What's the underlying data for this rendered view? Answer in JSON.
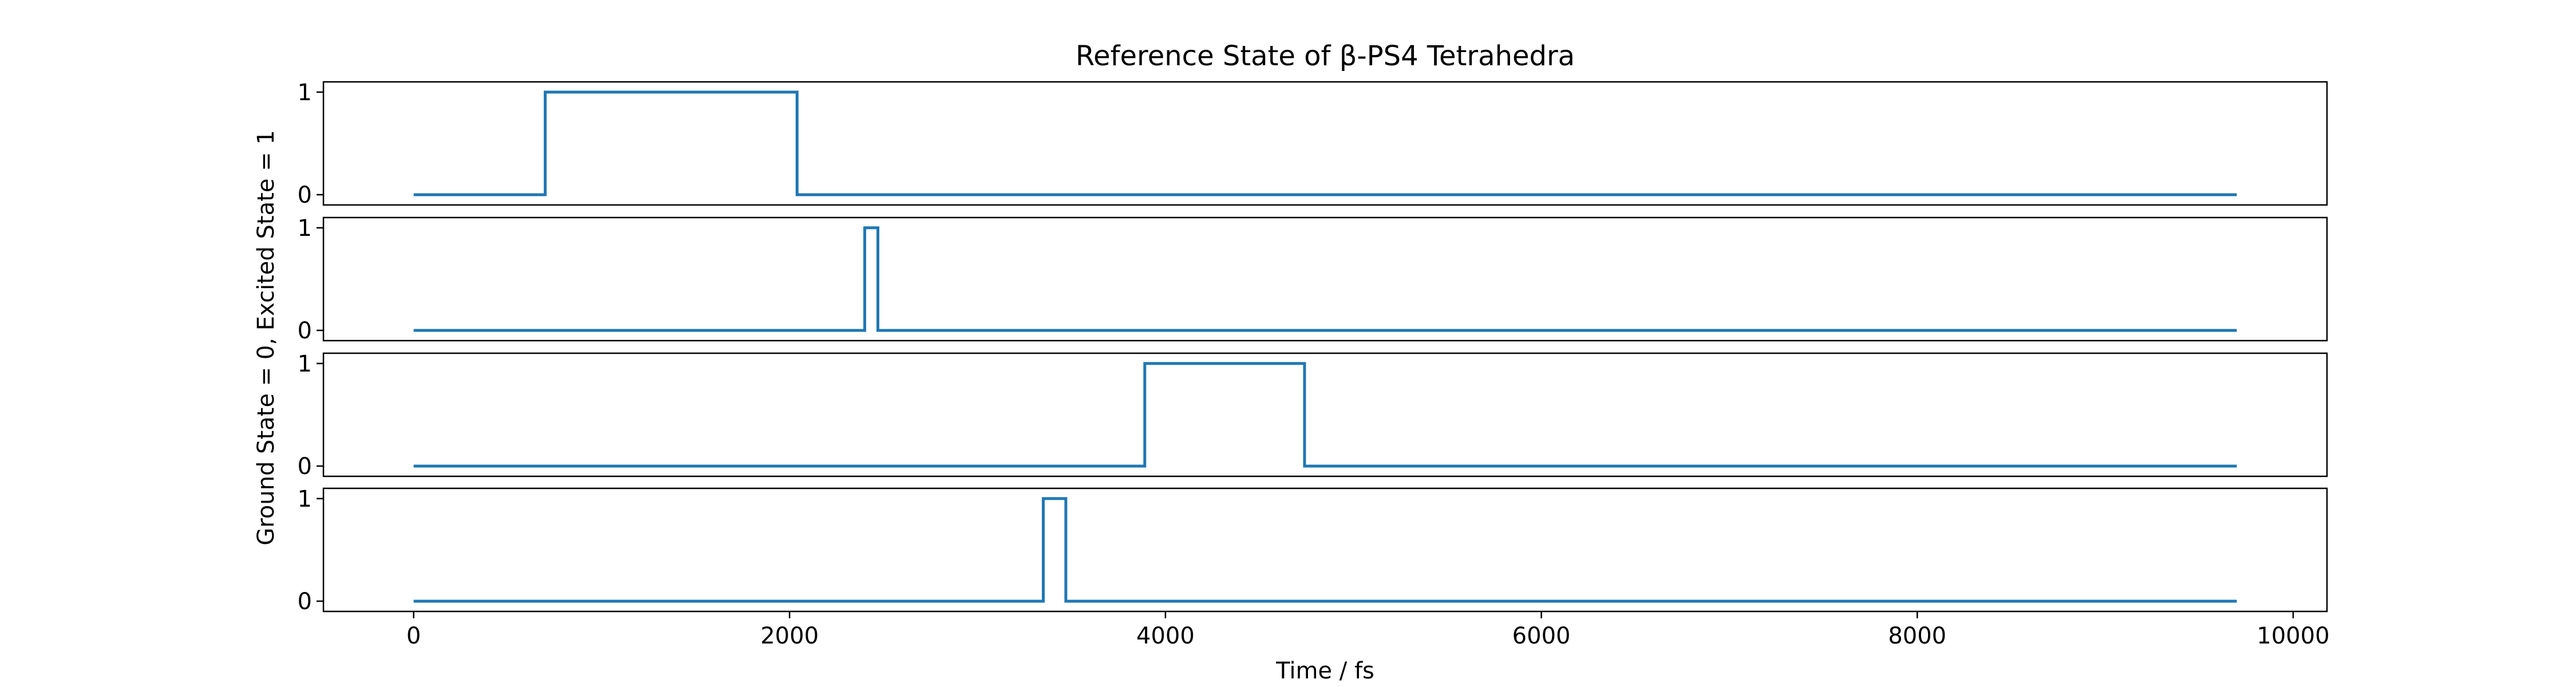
{
  "chart_data": {
    "type": "line",
    "title": "Reference State of β-PS4 Tetrahedra",
    "xlabel": "Time / fs",
    "ylabel": "Ground State = 0, Excited State = 1",
    "xlim": [
      -480,
      10180
    ],
    "ylim": [
      -0.1,
      1.1
    ],
    "x_ticks": [
      0,
      2000,
      4000,
      6000,
      8000,
      10000
    ],
    "x_tick_labels": [
      "0",
      "2000",
      "4000",
      "6000",
      "8000",
      "10000"
    ],
    "y_ticks": [
      0,
      1
    ],
    "y_tick_labels": [
      "0",
      "1"
    ],
    "grid": false,
    "legend": "none",
    "line_color": "#1f77b4",
    "series": [
      {
        "x": [
          0,
          700,
          700,
          2040,
          2040,
          9700
        ],
        "values": [
          0,
          0,
          1,
          1,
          0,
          0
        ]
      },
      {
        "x": [
          0,
          2400,
          2400,
          2470,
          2470,
          9700
        ],
        "values": [
          0,
          0,
          1,
          1,
          0,
          0
        ]
      },
      {
        "x": [
          0,
          3890,
          3890,
          4740,
          4740,
          9700
        ],
        "values": [
          0,
          0,
          1,
          1,
          0,
          0
        ]
      },
      {
        "x": [
          0,
          3350,
          3350,
          3470,
          3470,
          9700
        ],
        "values": [
          0,
          0,
          1,
          1,
          0,
          0
        ]
      }
    ]
  }
}
